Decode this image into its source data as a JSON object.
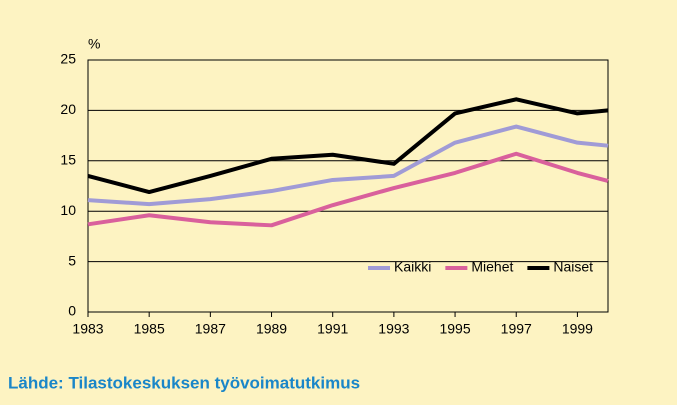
{
  "chart_data": {
    "type": "line",
    "y_label": "%",
    "x": [
      1983,
      1985,
      1987,
      1989,
      1991,
      1993,
      1995,
      1997,
      1999,
      2000
    ],
    "series": [
      {
        "name": "Kaikki",
        "color": "#a09bd6",
        "values": [
          11.1,
          10.7,
          11.2,
          12.0,
          13.1,
          13.5,
          16.8,
          18.4,
          16.8,
          16.5
        ]
      },
      {
        "name": "Miehet",
        "color": "#d9609c",
        "values": [
          8.7,
          9.6,
          8.9,
          8.6,
          10.6,
          12.3,
          13.8,
          15.7,
          13.8,
          13.0
        ]
      },
      {
        "name": "Naiset",
        "color": "#000000",
        "values": [
          13.5,
          11.9,
          13.5,
          15.2,
          15.6,
          14.7,
          19.7,
          21.1,
          19.7,
          20.0
        ]
      }
    ],
    "xlim": [
      1983,
      2000
    ],
    "xticks": [
      1983,
      1985,
      1987,
      1989,
      1991,
      1993,
      1995,
      1997,
      1999
    ],
    "ylim": [
      0,
      25
    ],
    "yticks": [
      0,
      5,
      10,
      15,
      20,
      25
    ],
    "grid": true,
    "legend": "lower-right",
    "source": "Lähde: Tilastokeskuksen työvoimatutkimus"
  }
}
